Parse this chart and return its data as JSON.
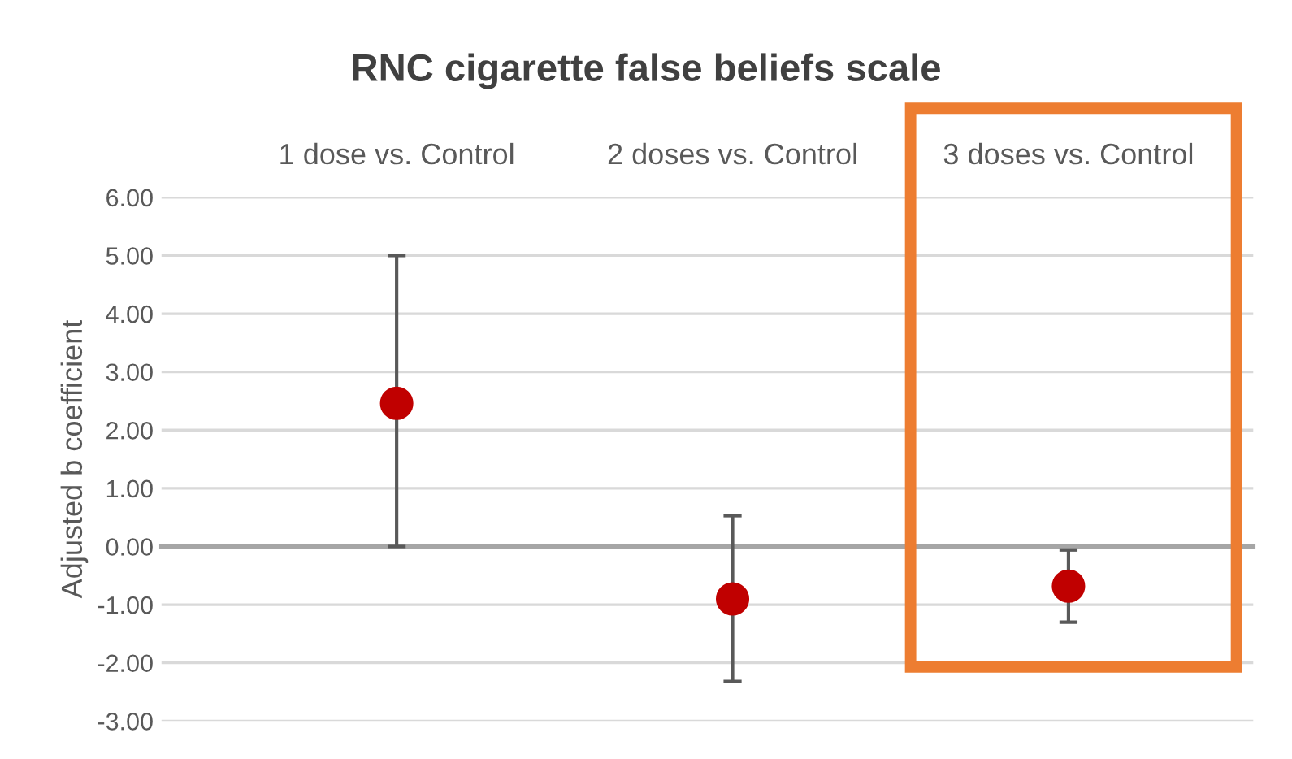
{
  "chart_data": {
    "type": "scatter",
    "title": "RNC cigarette false beliefs scale",
    "ylabel": "Adjusted b coefficient",
    "categories": [
      "1 dose vs. Control",
      "2 doses vs. Control",
      "3 doses vs. Control"
    ],
    "series": [
      {
        "color": "#c00000",
        "values": [
          2.46,
          -0.9,
          -0.68
        ],
        "errors": [
          [
            0.0,
            5.0
          ],
          [
            -2.32,
            0.53
          ],
          [
            -1.3,
            -0.06
          ]
        ]
      }
    ],
    "ylim": [
      -3,
      6
    ],
    "yticks": [
      {
        "value": -3,
        "label": "-3.00"
      },
      {
        "value": -2,
        "label": "-2.00"
      },
      {
        "value": -1,
        "label": "-1.00"
      },
      {
        "value": 0,
        "label": "0.00"
      },
      {
        "value": 1,
        "label": "1.00"
      },
      {
        "value": 2,
        "label": "2.00"
      },
      {
        "value": 3,
        "label": "3.00"
      },
      {
        "value": 4,
        "label": "4.00"
      },
      {
        "value": 5,
        "label": "5.00"
      },
      {
        "value": 6,
        "label": "6.00"
      }
    ],
    "grid": "y",
    "marker": "circle",
    "legend": false
  }
}
